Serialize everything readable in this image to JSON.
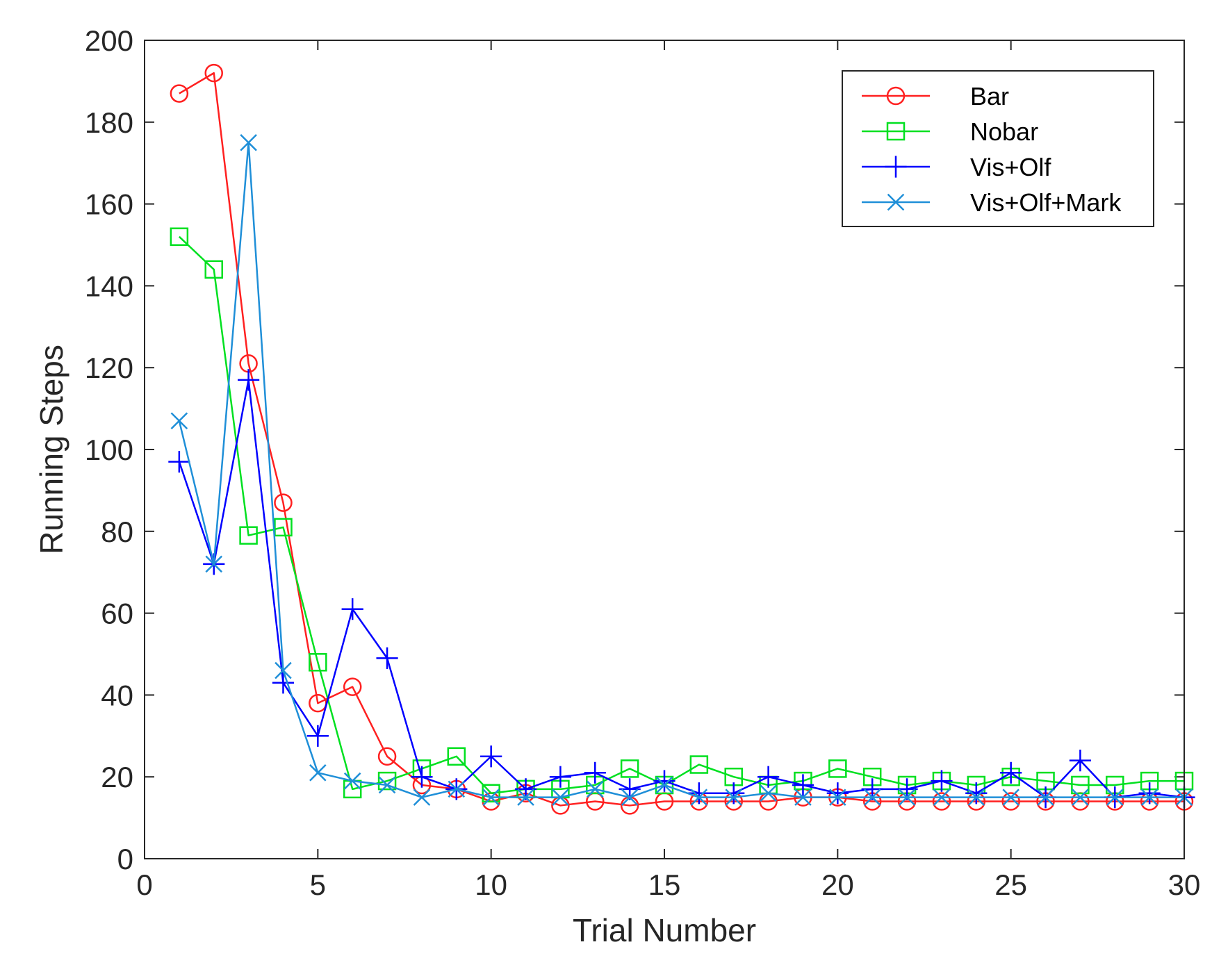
{
  "chart_data": {
    "type": "line",
    "title": "",
    "xlabel": "Trial Number",
    "ylabel": "Running Steps",
    "xlim": [
      0,
      30
    ],
    "ylim": [
      0,
      200
    ],
    "xticks": [
      0,
      5,
      10,
      15,
      20,
      25,
      30
    ],
    "yticks": [
      0,
      20,
      40,
      60,
      80,
      100,
      120,
      140,
      160,
      180,
      200
    ],
    "x": [
      1,
      2,
      3,
      4,
      5,
      6,
      7,
      8,
      9,
      10,
      11,
      12,
      13,
      14,
      15,
      16,
      17,
      18,
      19,
      20,
      21,
      22,
      23,
      24,
      25,
      26,
      27,
      28,
      29,
      30
    ],
    "legend_position": "top-right",
    "series": [
      {
        "name": "Bar",
        "marker": "circle",
        "color": "#ff2020",
        "values": [
          187,
          192,
          121,
          87,
          38,
          42,
          25,
          18,
          17,
          14,
          16,
          13,
          14,
          13,
          14,
          14,
          14,
          14,
          15,
          15,
          14,
          14,
          14,
          14,
          14,
          14,
          14,
          14,
          14,
          14
        ]
      },
      {
        "name": "Nobar",
        "marker": "square",
        "color": "#00e020",
        "values": [
          152,
          144,
          79,
          81,
          48,
          17,
          19,
          22,
          25,
          16,
          17,
          17,
          18,
          22,
          18,
          23,
          20,
          18,
          19,
          22,
          20,
          18,
          19,
          18,
          20,
          19,
          18,
          18,
          19,
          19
        ]
      },
      {
        "name": "Vis+Olf",
        "marker": "plus",
        "color": "#0000ff",
        "values": [
          97,
          72,
          117,
          43,
          30,
          61,
          49,
          20,
          17,
          25,
          17,
          20,
          21,
          17,
          19,
          16,
          16,
          20,
          18,
          16,
          17,
          17,
          19,
          16,
          21,
          15,
          24,
          15,
          16,
          15
        ]
      },
      {
        "name": "Vis+Olf+Mark",
        "marker": "x",
        "color": "#1f8fd8",
        "values": [
          107,
          72,
          175,
          46,
          21,
          19,
          18,
          15,
          17,
          15,
          15,
          15,
          17,
          15,
          18,
          15,
          15,
          16,
          15,
          15,
          15,
          15,
          15,
          15,
          15,
          15,
          15,
          15,
          15,
          15
        ]
      }
    ]
  }
}
